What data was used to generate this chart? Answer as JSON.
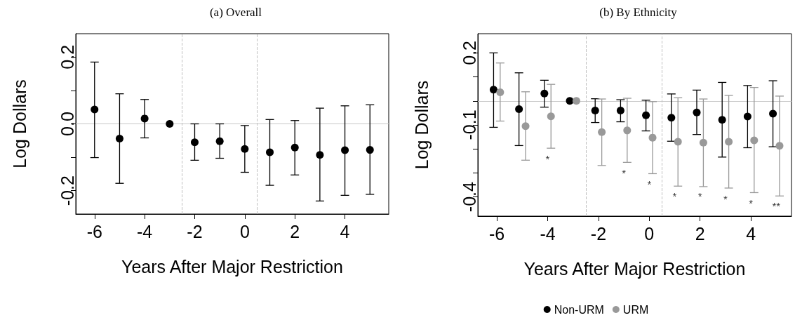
{
  "chart_data": [
    {
      "type": "scatter",
      "title": "(a) Overall",
      "xlabel": "Years After Major Restriction",
      "ylabel": "Log Dollars",
      "x": [
        -6,
        -5,
        -4,
        -3,
        -2,
        -1,
        0,
        1,
        2,
        3,
        4,
        5
      ],
      "series": [
        {
          "color": "#000000",
          "values": [
            0.043,
            -0.044,
            0.016,
            0,
            -0.055,
            -0.052,
            -0.075,
            -0.085,
            -0.071,
            -0.093,
            -0.079,
            -0.078
          ],
          "errors": [
            [
              -0.101,
              0.185
            ],
            [
              -0.178,
              0.09
            ],
            [
              -0.042,
              0.073
            ],
            null,
            [
              -0.109,
              0.0
            ],
            [
              -0.103,
              0.0
            ],
            [
              -0.145,
              -0.005
            ],
            [
              -0.184,
              0.013
            ],
            [
              -0.153,
              0.01
            ],
            [
              -0.231,
              0.047
            ],
            [
              -0.214,
              0.054
            ],
            [
              -0.211,
              0.057
            ]
          ]
        }
      ],
      "xlim": [
        -6.75,
        5.75
      ],
      "xticks": [
        -6,
        -4,
        -2,
        0,
        2,
        4
      ],
      "ylim": [
        -0.27,
        0.27
      ],
      "yticks": [
        {
          "value": -0.2,
          "label": "-0.2"
        },
        {
          "value": -0.1,
          "label": null
        },
        {
          "value": 0,
          "label": "0.0"
        },
        {
          "value": 0.1,
          "label": null
        },
        {
          "value": 0.2,
          "label": "0.2"
        }
      ],
      "ref_lines": [
        {
          "axis": "y",
          "value": 0,
          "color": "#c8c8c8",
          "line_style": "solid"
        },
        {
          "axis": "x",
          "value": -2.5,
          "color": "#c0c0c0",
          "line_style": "dashed"
        },
        {
          "axis": "x",
          "value": 0.5,
          "color": "#c0c0c0",
          "line_style": "dashed"
        }
      ],
      "marker": "circle",
      "grid": false,
      "legend": false
    },
    {
      "type": "scatter",
      "title": "(b) By Ethnicity",
      "xlabel": "Years After Major Restriction",
      "ylabel": "Log Dollars",
      "series": [
        {
          "name": "Non-URM",
          "color": "#000000",
          "x": [
            -6.13,
            -5.13,
            -4.13,
            -3.13,
            -2.13,
            -1.13,
            -0.13,
            0.87,
            1.87,
            2.87,
            3.87,
            4.87
          ],
          "values": [
            0.047,
            -0.034,
            0.031,
            0,
            -0.04,
            -0.04,
            -0.06,
            -0.07,
            -0.048,
            -0.079,
            -0.065,
            -0.053
          ],
          "errors": [
            [
              -0.11,
              0.2
            ],
            [
              -0.186,
              0.117
            ],
            [
              -0.026,
              0.086
            ],
            null,
            [
              -0.09,
              0.009
            ],
            [
              -0.087,
              0.005
            ],
            [
              -0.125,
              0.003
            ],
            [
              -0.168,
              0.029
            ],
            [
              -0.14,
              0.045
            ],
            [
              -0.234,
              0.077
            ],
            [
              -0.195,
              0.064
            ],
            [
              -0.191,
              0.084
            ]
          ]
        },
        {
          "name": "URM",
          "color": "#999999",
          "x": [
            -5.87,
            -4.87,
            -3.87,
            -2.87,
            -1.87,
            -0.87,
            0.13,
            1.13,
            2.13,
            3.13,
            4.13,
            5.13
          ],
          "values": [
            0.036,
            -0.105,
            -0.064,
            0,
            -0.13,
            -0.123,
            -0.153,
            -0.17,
            -0.174,
            -0.17,
            -0.164,
            -0.187
          ],
          "errors": [
            [
              -0.084,
              0.158
            ],
            [
              -0.247,
              0.038
            ],
            [
              -0.197,
              0.069
            ],
            null,
            [
              -0.269,
              0.008
            ],
            [
              -0.256,
              0.011
            ],
            [
              -0.303,
              -0.003
            ],
            [
              -0.355,
              0.013
            ],
            [
              -0.357,
              0.008
            ],
            [
              -0.363,
              0.023
            ],
            [
              -0.382,
              0.056
            ],
            [
              -0.396,
              0.02
            ]
          ]
        }
      ],
      "xlim": [
        -6.75,
        5.6
      ],
      "xticks": [
        -6,
        -4,
        -2,
        0,
        2,
        4
      ],
      "ylim": [
        -0.48,
        0.28
      ],
      "yticks": [
        -0.4,
        {
          "value": -0.3,
          "label": null
        },
        {
          "value": -0.2,
          "label": null
        },
        -0.1,
        {
          "value": 0,
          "label": null
        },
        {
          "value": 0.1,
          "label": null
        },
        0.2
      ],
      "ref_lines": [
        {
          "axis": "y",
          "value": 0,
          "color": "#c8c8c8",
          "line_style": "solid"
        },
        {
          "axis": "x",
          "value": -2.5,
          "color": "#c0c0c0",
          "line_style": "dashed"
        },
        {
          "axis": "x",
          "value": 0.5,
          "color": "#c0c0c0",
          "line_style": "dashed"
        }
      ],
      "annotations": [
        "*",
        "*",
        "*",
        "*",
        "*",
        "*",
        "*",
        "**"
      ],
      "marker": "circle",
      "grid": false,
      "legend": "bottom"
    }
  ]
}
